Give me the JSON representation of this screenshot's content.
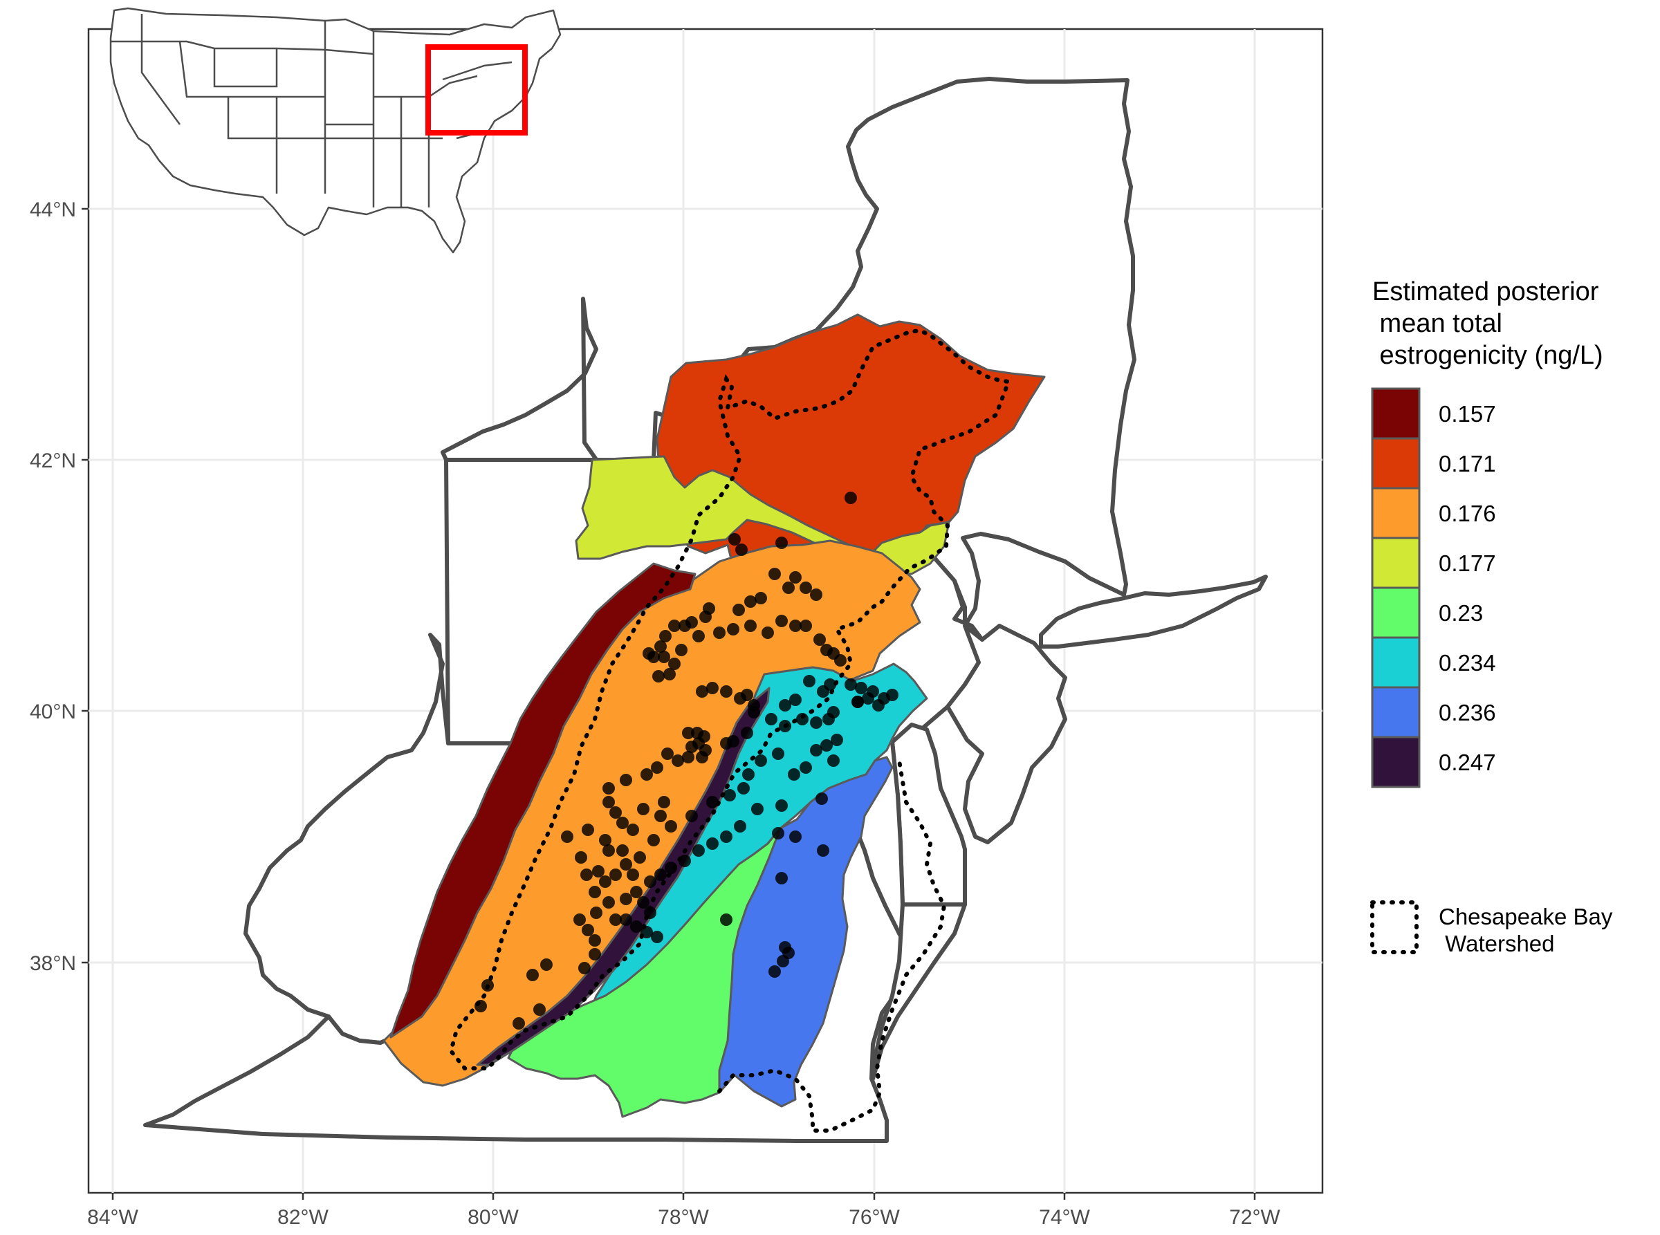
{
  "map": {
    "x_ticks": [
      "84°W",
      "82°W",
      "80°W",
      "78°W",
      "76°W",
      "74°W",
      "72°W"
    ],
    "y_ticks": [
      "44°N",
      "42°N",
      "40°N",
      "38°N"
    ],
    "grid": true
  },
  "legend": {
    "title_lines": [
      "Estimated posterior",
      " mean total",
      " estrogenicity (ng/L)"
    ],
    "items": [
      {
        "label": "0.157",
        "color": "#7a0403"
      },
      {
        "label": "0.171",
        "color": "#db3a07"
      },
      {
        "label": "0.176",
        "color": "#fe9b2d"
      },
      {
        "label": "0.177",
        "color": "#d1e834"
      },
      {
        "label": "0.23",
        "color": "#62fc6b"
      },
      {
        "label": "0.234",
        "color": "#1bd0d5"
      },
      {
        "label": "0.236",
        "color": "#4777ef"
      },
      {
        "label": "0.247",
        "color": "#30123b"
      }
    ],
    "boundary_label_lines": [
      "Chesapeake Bay",
      " Watershed"
    ]
  },
  "inset": {
    "highlight_color": "#ff0000"
  }
}
